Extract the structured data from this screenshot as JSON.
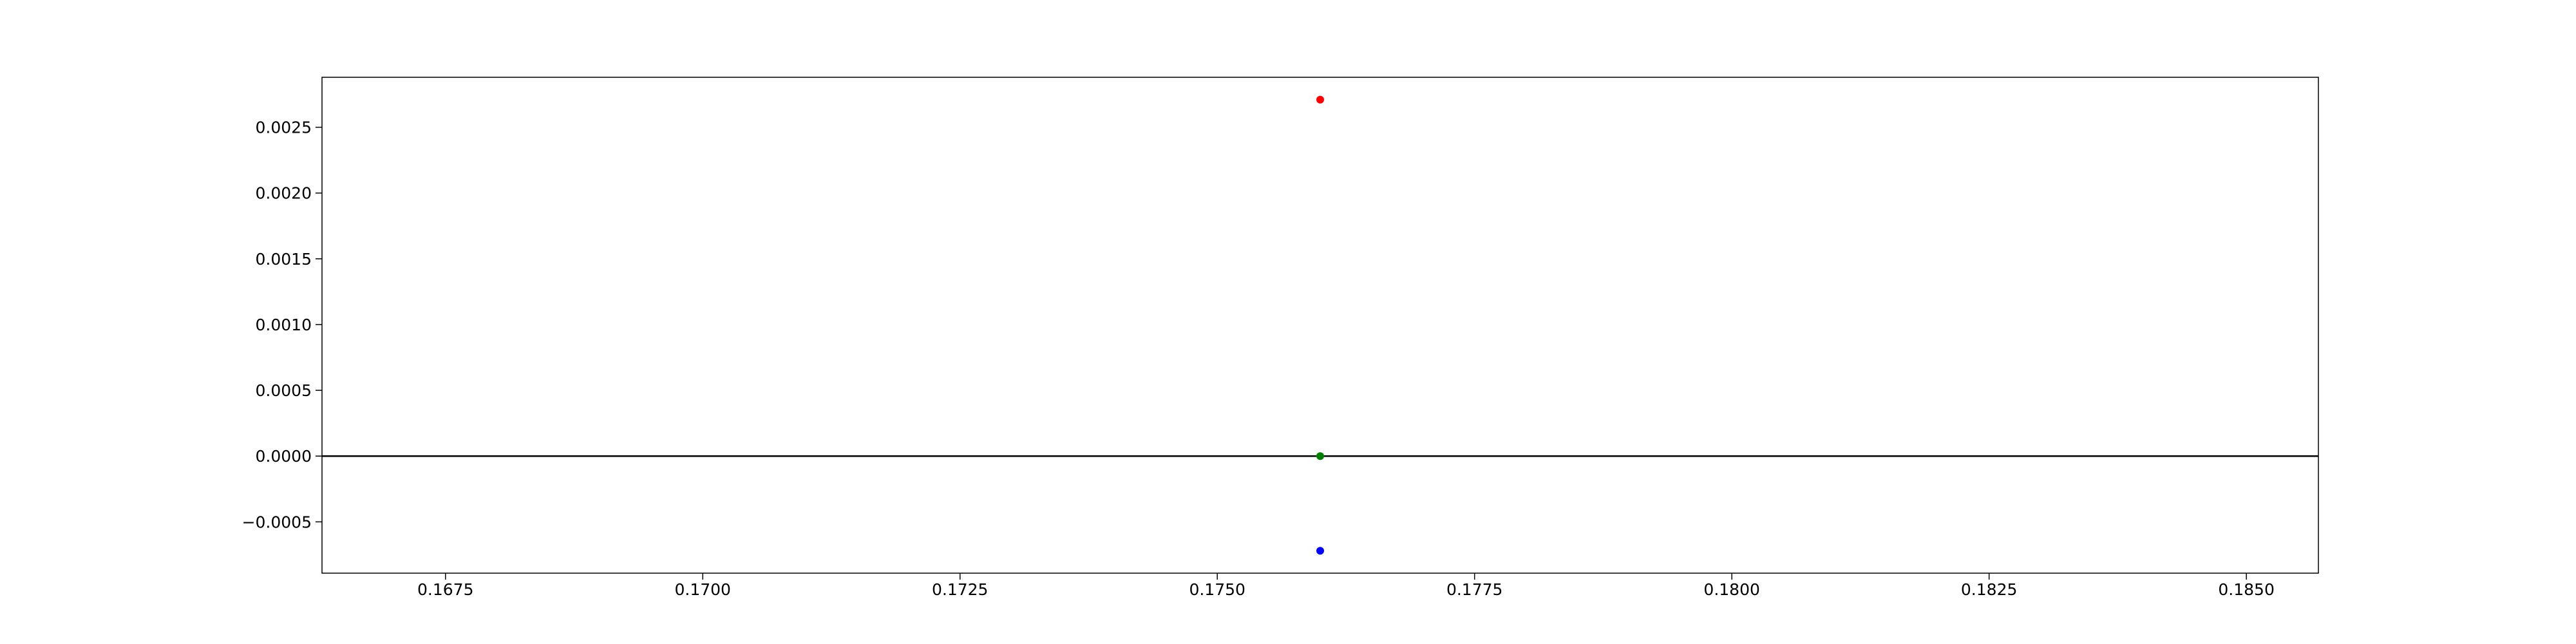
{
  "chart_data": {
    "type": "scatter",
    "title": "",
    "xlabel": "",
    "ylabel": "",
    "xlim": [
      0.1663,
      0.1857
    ],
    "ylim": [
      -0.00089,
      0.00288
    ],
    "x_ticks": [
      0.1675,
      0.17,
      0.1725,
      0.175,
      0.1775,
      0.18,
      0.1825,
      0.185
    ],
    "x_tick_labels": [
      "0.1675",
      "0.1700",
      "0.1725",
      "0.1750",
      "0.1775",
      "0.1800",
      "0.1825",
      "0.1850"
    ],
    "y_ticks": [
      -0.0005,
      0.0,
      0.0005,
      0.001,
      0.0015,
      0.002,
      0.0025
    ],
    "y_tick_labels": [
      "−0.0005",
      "0.0000",
      "0.0005",
      "0.0010",
      "0.0015",
      "0.0020",
      "0.0025"
    ],
    "grid": false,
    "reference_line": {
      "y": 0,
      "color": "#000000"
    },
    "points": [
      {
        "x": 0.176,
        "y": 0.00271,
        "color": "#ff0000"
      },
      {
        "x": 0.176,
        "y": 0.0,
        "color": "#008000"
      },
      {
        "x": 0.176,
        "y": -0.00072,
        "color": "#0000ff"
      }
    ]
  }
}
